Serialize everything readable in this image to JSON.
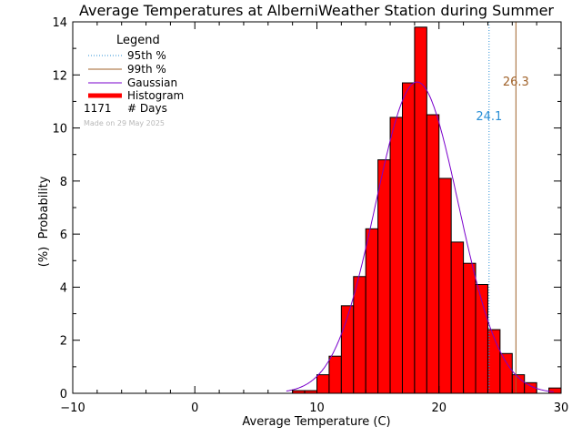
{
  "chart_data": {
    "type": "bar",
    "title": "Average Temperatures at AlberniWeather Station during Summer",
    "xlabel": "Average Temperature (C)",
    "ylabel": "Probability",
    "ylabel_unit": "(%)",
    "xlim": [
      -10,
      30
    ],
    "ylim": [
      0,
      14
    ],
    "x_ticks": [
      "−10",
      "0",
      "10",
      "20",
      "30"
    ],
    "x_tick_values": [
      -10,
      0,
      10,
      20,
      30
    ],
    "y_ticks": [
      "0",
      "2",
      "4",
      "6",
      "8",
      "10",
      "12",
      "14"
    ],
    "y_tick_values": [
      0,
      2,
      4,
      6,
      8,
      10,
      12,
      14
    ],
    "bin_width": 1,
    "bins": [
      {
        "x": 8,
        "value": 0.1
      },
      {
        "x": 9,
        "value": 0.1
      },
      {
        "x": 10,
        "value": 0.7
      },
      {
        "x": 11,
        "value": 1.4
      },
      {
        "x": 12,
        "value": 3.3
      },
      {
        "x": 13,
        "value": 4.4
      },
      {
        "x": 14,
        "value": 6.2
      },
      {
        "x": 15,
        "value": 8.8
      },
      {
        "x": 16,
        "value": 10.4
      },
      {
        "x": 17,
        "value": 11.7
      },
      {
        "x": 18,
        "value": 13.8
      },
      {
        "x": 19,
        "value": 10.5
      },
      {
        "x": 20,
        "value": 8.1
      },
      {
        "x": 21,
        "value": 5.7
      },
      {
        "x": 22,
        "value": 4.9
      },
      {
        "x": 23,
        "value": 4.1
      },
      {
        "x": 24,
        "value": 2.4
      },
      {
        "x": 25,
        "value": 1.5
      },
      {
        "x": 26,
        "value": 0.7
      },
      {
        "x": 27,
        "value": 0.4
      },
      {
        "x": 29,
        "value": 0.2
      }
    ],
    "gaussian": {
      "mean": 18.2,
      "sd": 3.4,
      "label": "Gaussian",
      "color": "#7a00cc"
    },
    "percentiles": [
      {
        "name": "95th %",
        "value": 24.1,
        "label": "24.1",
        "color": "#2a8fd6",
        "style": "dotted"
      },
      {
        "name": "99th %",
        "value": 26.3,
        "label": "26.3",
        "color": "#a0622a",
        "style": "solid"
      }
    ],
    "histogram_color": "#ff0000",
    "legend": {
      "title": "Legend",
      "position": "top-left",
      "items": [
        {
          "label": "95th %",
          "kind": "dotted",
          "color": "#2a8fd6"
        },
        {
          "label": "99th %",
          "kind": "solid",
          "color": "#a0622a"
        },
        {
          "label": "Gaussian",
          "kind": "solid",
          "color": "#7a00cc"
        },
        {
          "label": "Histogram",
          "kind": "thick",
          "color": "#ff0000"
        }
      ],
      "count_value": "1171",
      "count_label": "# Days"
    },
    "made_note": "Made on 29 May 2025"
  }
}
